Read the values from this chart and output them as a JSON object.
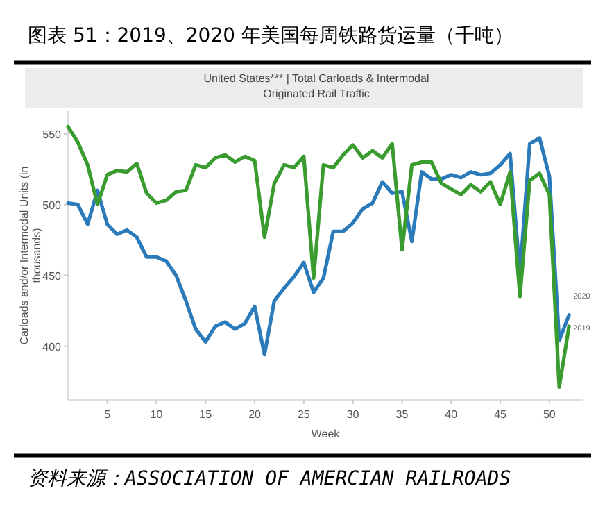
{
  "chart_data": {
    "type": "line",
    "title": "图表 51：2019、2020 年美国每周铁路货运量（千吨）",
    "subtitle": "United States*** | Total Carloads & Intermodal\nOriginated Rail Traffic",
    "xlabel": "Week",
    "ylabel": "Carloads and/or Intermodal Units (in thousands)",
    "annotations": [
      "资料来源：ASSOCIATION OF AMERCIAN RAILROADS"
    ],
    "x": [
      1,
      2,
      3,
      4,
      5,
      6,
      7,
      8,
      9,
      10,
      11,
      12,
      13,
      14,
      15,
      16,
      17,
      18,
      19,
      20,
      21,
      22,
      23,
      24,
      25,
      26,
      27,
      28,
      29,
      30,
      31,
      32,
      33,
      34,
      35,
      36,
      37,
      38,
      39,
      40,
      41,
      42,
      43,
      44,
      45,
      46,
      47,
      48,
      49,
      50,
      51,
      52
    ],
    "series": [
      {
        "name": "2020",
        "color": "#2b7bba",
        "values": [
          501,
          500,
          486,
          510,
          486,
          479,
          482,
          477,
          463,
          463,
          460,
          450,
          432,
          412,
          403,
          414,
          417,
          412,
          416,
          428,
          394,
          432,
          441,
          449,
          459,
          438,
          448,
          481,
          481,
          487,
          497,
          501,
          516,
          508,
          509,
          474,
          523,
          518,
          518,
          521,
          519,
          523,
          521,
          522,
          528,
          536,
          451,
          543,
          547,
          520,
          404,
          422
        ]
      },
      {
        "name": "2019",
        "color": "#3a9c2f",
        "values": [
          555,
          544,
          528,
          500,
          521,
          524,
          523,
          529,
          508,
          501,
          503,
          509,
          510,
          528,
          526,
          533,
          535,
          530,
          534,
          531,
          477,
          515,
          528,
          526,
          534,
          448,
          528,
          526,
          535,
          542,
          533,
          538,
          533,
          543,
          468,
          528,
          530,
          530,
          515,
          511,
          507,
          514,
          509,
          516,
          500,
          523,
          435,
          517,
          522,
          507,
          371,
          414
        ]
      }
    ],
    "xlim": [
      1,
      53.4
    ],
    "ylim": [
      362,
      566
    ],
    "xticks": [
      5,
      10,
      15,
      20,
      25,
      30,
      35,
      40,
      45,
      50
    ],
    "yticks": [
      400,
      450,
      500,
      550
    ],
    "grid": false,
    "legend": false,
    "marker": "none",
    "line_style": "solid"
  }
}
